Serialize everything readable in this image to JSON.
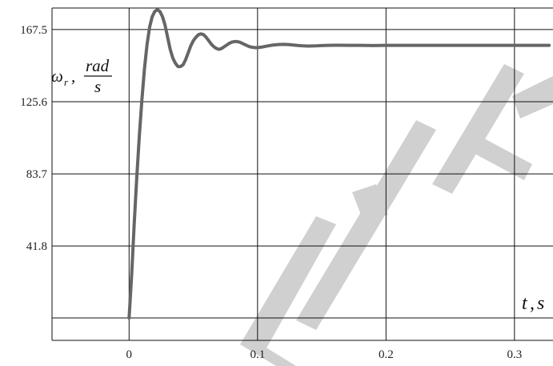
{
  "chart_data": {
    "type": "line",
    "xlabel": "t, s",
    "ylabel": "ωr, rad/s",
    "ylabel_parts": {
      "symbol": "ω",
      "subscript": "r",
      "numerator": "rad",
      "denominator": "s"
    },
    "xlabel_parts": {
      "symbol": "t",
      "unit": "s"
    },
    "x_ticks": [
      0,
      0.1,
      0.2,
      0.3
    ],
    "x_tick_labels": [
      "0",
      "0.1",
      "0.2",
      "0.3"
    ],
    "y_ticks": [
      0,
      41.8,
      83.7,
      125.6,
      167.5
    ],
    "y_tick_labels": [
      "",
      "41.8",
      "83.7",
      "125.6",
      "167.5"
    ],
    "xlim": [
      -0.06,
      0.33
    ],
    "ylim": [
      -13,
      180
    ],
    "grid": true,
    "legend": "none",
    "series": [
      {
        "color": "#666666",
        "x": [
          0,
          0.002,
          0.004,
          0.006,
          0.008,
          0.01,
          0.012,
          0.014,
          0.016,
          0.018,
          0.02,
          0.022,
          0.024,
          0.026,
          0.028,
          0.03,
          0.032,
          0.034,
          0.036,
          0.038,
          0.04,
          0.042,
          0.044,
          0.046,
          0.048,
          0.05,
          0.052,
          0.054,
          0.056,
          0.058,
          0.06,
          0.062,
          0.064,
          0.066,
          0.068,
          0.07,
          0.072,
          0.074,
          0.076,
          0.078,
          0.08,
          0.082,
          0.084,
          0.086,
          0.088,
          0.09,
          0.092,
          0.094,
          0.096,
          0.098,
          0.1,
          0.104,
          0.108,
          0.112,
          0.116,
          0.12,
          0.124,
          0.128,
          0.132,
          0.136,
          0.14,
          0.145,
          0.15,
          0.155,
          0.16,
          0.165,
          0.17,
          0.18,
          0.19,
          0.2,
          0.21,
          0.22,
          0.23,
          0.24,
          0.25,
          0.26,
          0.27,
          0.28,
          0.29,
          0.3,
          0.31,
          0.32,
          0.327
        ],
        "y": [
          0,
          25,
          55,
          82,
          106,
          127,
          145,
          159,
          169,
          175,
          178,
          179,
          178,
          175,
          170,
          163,
          156,
          151,
          148,
          146,
          146,
          147,
          150,
          154,
          158,
          161,
          163,
          164.5,
          165,
          164.5,
          163,
          161,
          159,
          157.5,
          156.5,
          156,
          156.5,
          157.5,
          158.5,
          159.5,
          160.2,
          160.5,
          160.5,
          160.2,
          159.5,
          158.8,
          158.1,
          157.5,
          157.2,
          157,
          157,
          157.4,
          158,
          158.5,
          158.8,
          158.9,
          158.8,
          158.5,
          158.2,
          158,
          157.9,
          158,
          158.2,
          158.3,
          158.4,
          158.4,
          158.3,
          158.3,
          158.2,
          158.3,
          158.3,
          158.3,
          158.3,
          158.3,
          158.3,
          158.3,
          158.3,
          158.3,
          158.3,
          158.3,
          158.3,
          158.3,
          158.3
        ]
      }
    ]
  }
}
